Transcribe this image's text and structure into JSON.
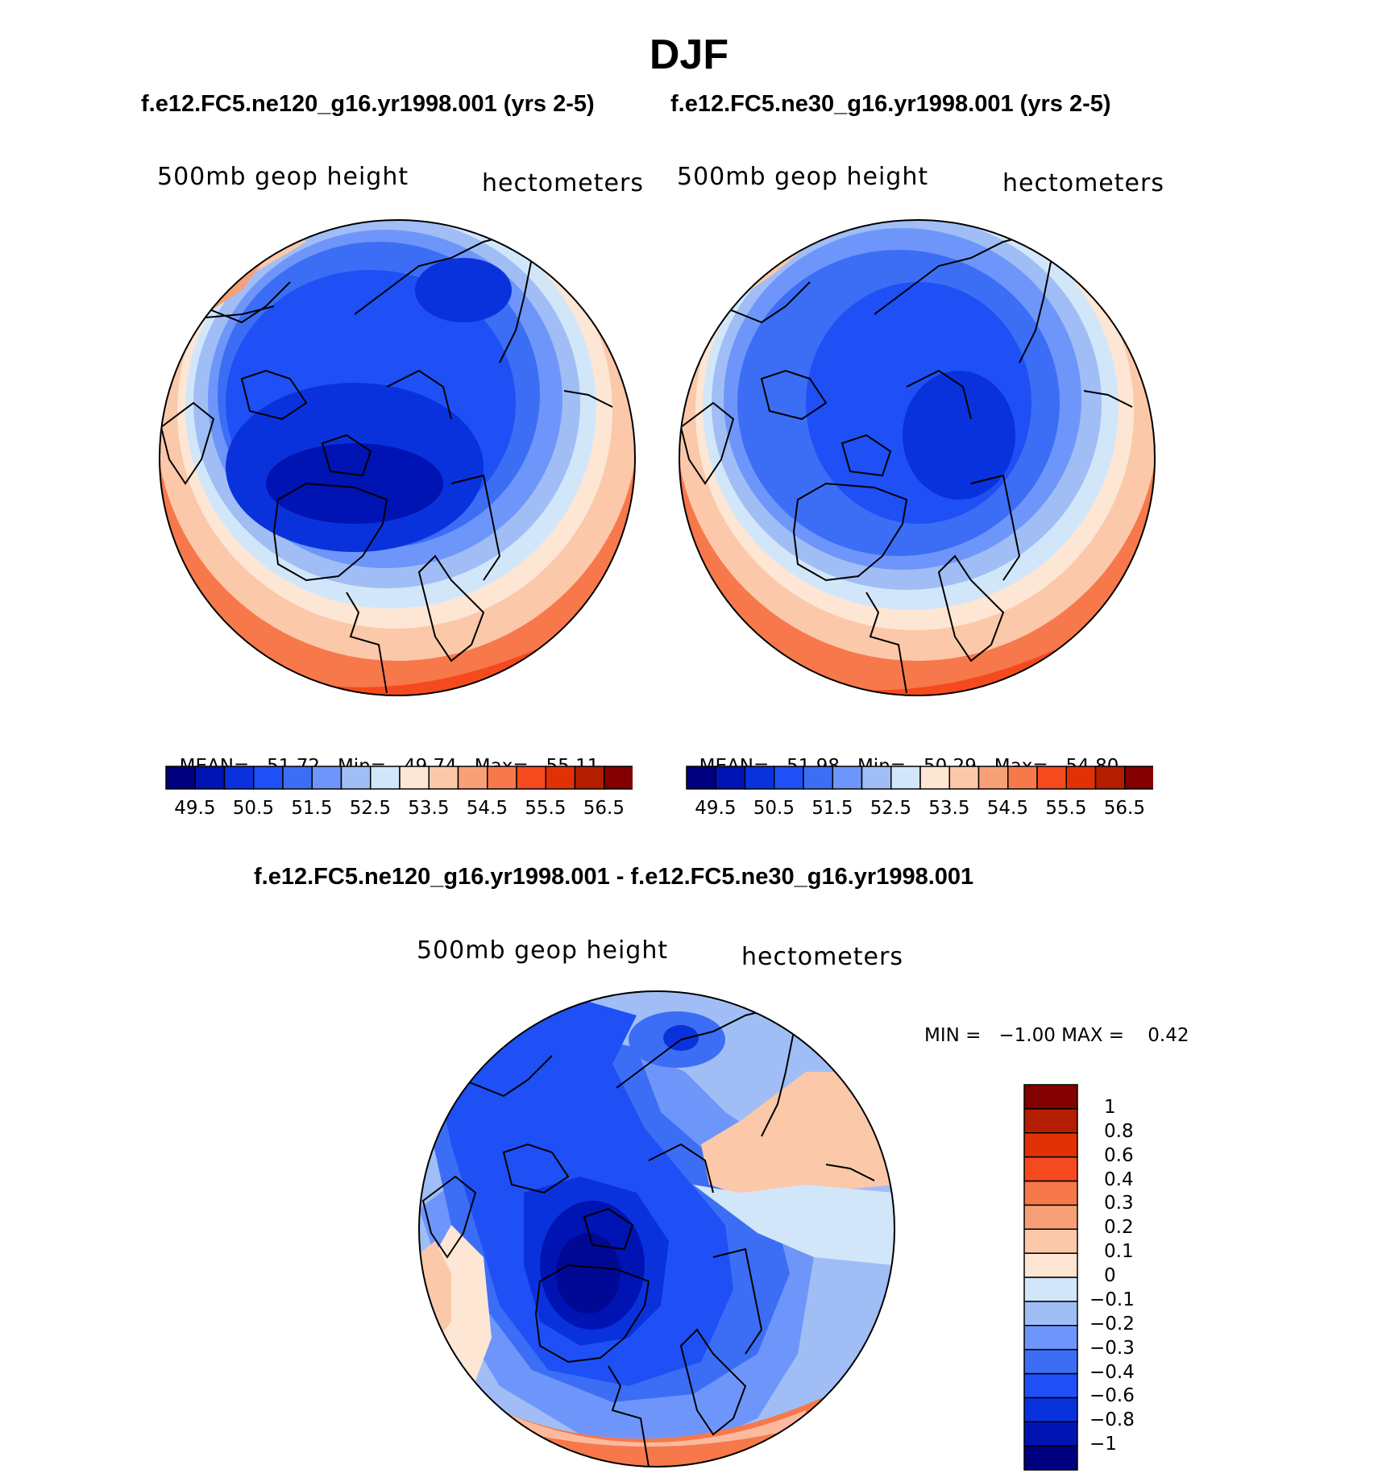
{
  "page": {
    "title": "DJF",
    "subtitle_left": "f.e12.FC5.ne120_g16.yr1998.001 (yrs 2-5)",
    "subtitle_right": "f.e12.FC5.ne30_g16.yr1998.001 (yrs 2-5)",
    "diff_title": "f.e12.FC5.ne120_g16.yr1998.001 - f.e12.FC5.ne30_g16.yr1998.001"
  },
  "panels": [
    {
      "variable": "500mb geop height",
      "units": "hectometers",
      "stats": {
        "mean_label": "MEAN=",
        "mean": "51.72",
        "min_label": "Min=",
        "min": "49.74",
        "max_label": "Max=",
        "max": "55.11"
      }
    },
    {
      "variable": "500mb geop height",
      "units": "hectometers",
      "stats": {
        "mean_label": "MEAN=",
        "mean": "51.98",
        "min_label": "Min=",
        "min": "50.29",
        "max_label": "Max=",
        "max": "54.80"
      }
    },
    {
      "variable": "500mb geop height",
      "units": "hectometers",
      "stats_text": "MIN =   −1.00 MAX =    0.42"
    }
  ],
  "colorbar_h": {
    "colors": [
      "#00007f",
      "#0014b3",
      "#0a32dc",
      "#1e50f5",
      "#3c6ef5",
      "#6e96fa",
      "#a0bef5",
      "#d2e6fa",
      "#fde6d4",
      "#fbc8aa",
      "#f7a077",
      "#f7784b",
      "#f54a1e",
      "#e13205",
      "#b41e00",
      "#820000"
    ],
    "tick_labels": [
      "49.5",
      "50.5",
      "51.5",
      "52.5",
      "53.5",
      "54.5",
      "55.5",
      "56.5"
    ]
  },
  "colorbar_v": {
    "colors": [
      "#00007f",
      "#0014b3",
      "#0a32dc",
      "#1e50f5",
      "#3c6ef5",
      "#6e96fa",
      "#a0bef5",
      "#d2e6fa",
      "#fde6d4",
      "#fbc8aa",
      "#f7a077",
      "#f7784b",
      "#f54a1e",
      "#e13205",
      "#b41e00",
      "#820000"
    ],
    "tick_labels": [
      "1",
      "0.8",
      "0.6",
      "0.4",
      "0.3",
      "0.2",
      "0.1",
      "0",
      "−0.1",
      "−0.2",
      "−0.3",
      "−0.4",
      "−0.6",
      "−0.8",
      "−1"
    ]
  }
}
